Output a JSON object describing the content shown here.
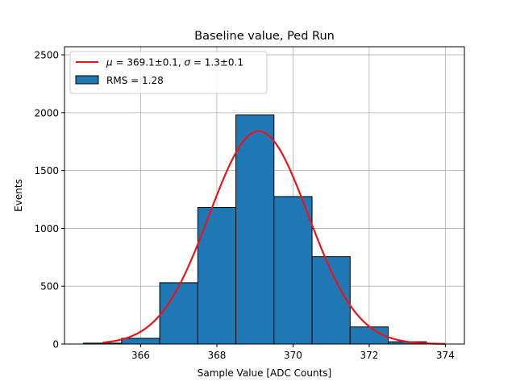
{
  "chart_data": {
    "type": "bar",
    "title": "Baseline value, Ped Run",
    "xlabel": "Sample Value [ADC Counts]",
    "ylabel": "Events",
    "xlim": [
      364.0,
      374.5
    ],
    "ylim": [
      0,
      2570
    ],
    "grid": true,
    "legend_position": "top-left",
    "xticks": [
      366,
      368,
      370,
      372,
      374
    ],
    "yticks": [
      0,
      500,
      1000,
      1500,
      2000,
      2500
    ],
    "histogram": {
      "name": "RMS = 1.28",
      "bin_edges": [
        364.5,
        365.5,
        366.5,
        367.5,
        368.5,
        369.5,
        370.5,
        371.5,
        372.5,
        373.5
      ],
      "counts": [
        8,
        50,
        530,
        1180,
        1980,
        1275,
        755,
        148,
        20
      ]
    },
    "fit": {
      "name": "$\\mu = 369.1 \\pm 0.1$, $\\sigma = 1.3 \\pm 0.1$",
      "label_parts": {
        "mu_symbol": "μ",
        "mu_value": " = 369.1±0.1, ",
        "sigma_symbol": "σ",
        "sigma_value": " = 1.3±0.1"
      },
      "mean": 369.1,
      "sigma": 1.3,
      "amplitude": 1840,
      "x_range": [
        365.0,
        374.0
      ]
    },
    "colors": {
      "bar_fill": "#1f77b4",
      "bar_edge": "#000000",
      "fit_line": "#e8151b",
      "grid": "#b0b0b0"
    }
  },
  "legend": {
    "fit_label_text": "μ = 369.1±0.1, σ = 1.3±0.1",
    "hist_label": "RMS = 1.28"
  }
}
